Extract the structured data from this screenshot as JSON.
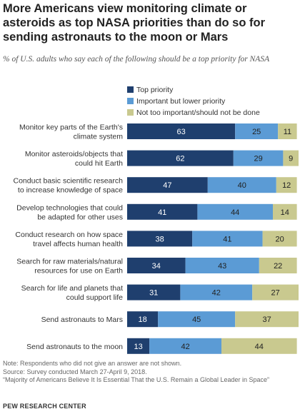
{
  "title": "More Americans view monitoring climate or asteroids as top NASA priorities than do so for sending astronauts to the moon or Mars",
  "subtitle": "% of U.S. adults who say each of the following should be a top priority for NASA",
  "colors": {
    "top": "#1f3f6e",
    "important": "#5b9bd5",
    "not": "#c9c98f"
  },
  "chart_data": {
    "type": "bar",
    "orientation": "horizontal",
    "stacked": true,
    "categories": [
      [
        "Monitor key parts of the Earth's",
        "climate system"
      ],
      [
        "Monitor asteroids/objects that",
        "could hit Earth"
      ],
      [
        "Conduct basic scientific research",
        "to increase knowledge of space"
      ],
      [
        "Develop technologies that could",
        "be adapted for other uses"
      ],
      [
        "Conduct  research on how space",
        "travel affects human health"
      ],
      [
        "Search for raw materials/natural",
        "resources for use on Earth"
      ],
      [
        "Search for life and planets that",
        "could support life"
      ],
      [
        "Send astronauts to Mars"
      ],
      [
        "Send astronauts to the moon"
      ]
    ],
    "series": [
      {
        "name": "Top priority",
        "values": [
          63,
          62,
          47,
          41,
          38,
          34,
          31,
          18,
          13
        ]
      },
      {
        "name": "Important but lower priority",
        "values": [
          25,
          29,
          40,
          44,
          41,
          43,
          42,
          45,
          42
        ]
      },
      {
        "name": "Not too important/should not be done",
        "values": [
          11,
          9,
          12,
          14,
          20,
          22,
          27,
          37,
          44
        ]
      }
    ],
    "xlim": [
      0,
      100
    ],
    "legend": "top-left"
  },
  "notes": [
    "Note: Respondents who did not give an answer are not shown.",
    "Source: Survey conducted March 27-April 9, 2018.",
    "“Majority of Americans Believe It Is Essential That the U.S. Remain a Global Leader in Space”"
  ],
  "source_org": "PEW RESEARCH CENTER"
}
